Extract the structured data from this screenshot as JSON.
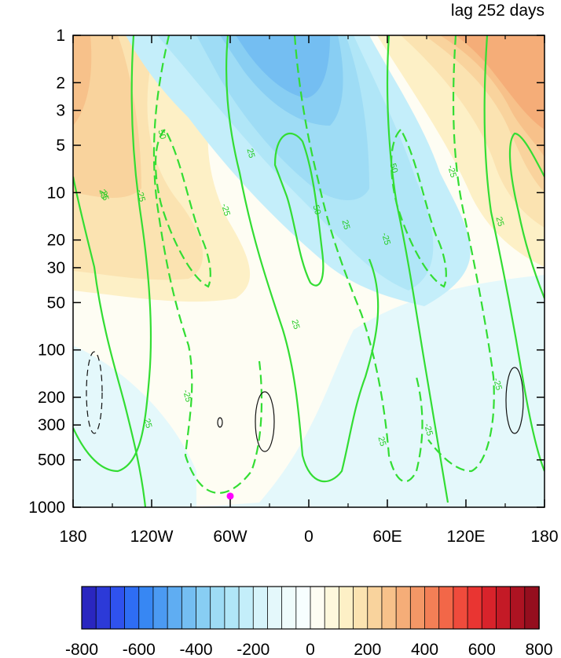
{
  "chart_data": {
    "type": "heatmap",
    "title": "lag 252 days",
    "xlabel": "",
    "ylabel": "",
    "x_ticks": [
      "180",
      "120W",
      "60W",
      "0",
      "60E",
      "120E",
      "180"
    ],
    "x_tick_values": [
      -180,
      -120,
      -60,
      0,
      60,
      120,
      180
    ],
    "y_ticks": [
      "1",
      "2",
      "3",
      "5",
      "10",
      "20",
      "30",
      "50",
      "100",
      "200",
      "300",
      "500",
      "1000"
    ],
    "y_tick_values": [
      1,
      2,
      3,
      5,
      10,
      20,
      30,
      50,
      100,
      200,
      300,
      500,
      1000
    ],
    "y_scale": "log",
    "y_reversed": true,
    "xlim": [
      -180,
      180
    ],
    "ylim": [
      1,
      1000
    ],
    "colorbar": {
      "levels": [
        -800,
        -750,
        -700,
        -650,
        -600,
        -550,
        -500,
        -450,
        -400,
        -350,
        -300,
        -250,
        -200,
        -150,
        -100,
        -50,
        0,
        50,
        100,
        150,
        200,
        250,
        300,
        350,
        400,
        450,
        500,
        550,
        600,
        650,
        700,
        750,
        800
      ],
      "labels": [
        "-800",
        "-600",
        "-400",
        "-200",
        "0",
        "200",
        "400",
        "600",
        "800"
      ],
      "label_values": [
        -800,
        -600,
        -400,
        -200,
        0,
        200,
        400,
        600,
        800
      ],
      "colors": [
        "#2a26c0",
        "#2c3ad8",
        "#2f52ee",
        "#2e6df4",
        "#3787f3",
        "#4b9af2",
        "#5fadf2",
        "#74bef2",
        "#88cef3",
        "#9edcf5",
        "#b0e6f7",
        "#c4eefa",
        "#d6f4fb",
        "#e4f8fb",
        "#effcfc",
        "#f7feff",
        "#fefdf3",
        "#fef8dc",
        "#fdf0c6",
        "#fbe3b1",
        "#f9d39d",
        "#f7c18a",
        "#f5ad78",
        "#f49766",
        "#f37f56",
        "#f26748",
        "#ef4b3c",
        "#e93532",
        "#d8232b",
        "#c41a26",
        "#ad1322",
        "#950e1e"
      ]
    },
    "contour_labels": [
      "50",
      "25",
      "-25",
      "25",
      "50",
      "25",
      "-25",
      "50",
      "-25",
      "25",
      "25",
      "-25",
      "-25",
      "25",
      "25",
      "-25",
      "25",
      "-25"
    ],
    "marker": {
      "lon": -60,
      "p": 850,
      "color": "#ff00ff"
    }
  }
}
